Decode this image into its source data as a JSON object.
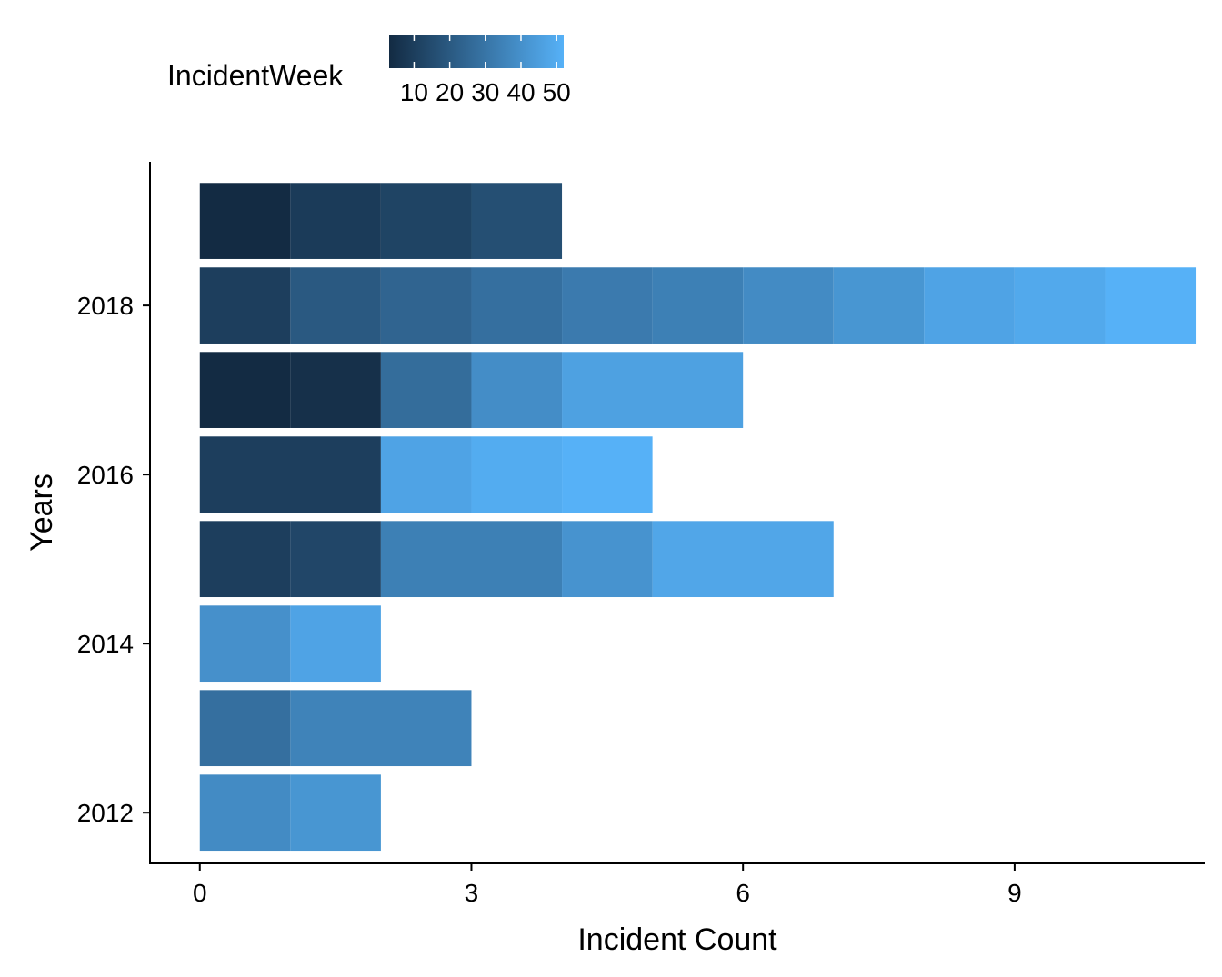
{
  "chart_data": {
    "type": "bar",
    "orientation": "horizontal",
    "stacked": true,
    "xlabel": "Incident Count",
    "ylabel": "Years",
    "xlim": [
      -0.55,
      11.1
    ],
    "ylim": [
      2011.4,
      2019.7
    ],
    "x_ticks": [
      0,
      3,
      6,
      9
    ],
    "y_ticks": [
      2012,
      2014,
      2016,
      2018
    ],
    "legend": {
      "title": "IncidentWeek",
      "position": "top",
      "type": "colorbar",
      "range": [
        3,
        52
      ],
      "ticks": [
        10,
        20,
        30,
        40,
        50
      ],
      "tick_labels": [
        "10",
        "20",
        "30",
        "40",
        "50"
      ],
      "low_color": "#132B43",
      "high_color": "#56B1F7"
    },
    "bars": [
      {
        "year": 2012,
        "segments": [
          {
            "week": 38,
            "count": 1
          },
          {
            "week": 42,
            "count": 1
          }
        ]
      },
      {
        "year": 2013,
        "segments": [
          {
            "week": 28,
            "count": 1
          },
          {
            "week": 35,
            "count": 2
          }
        ]
      },
      {
        "year": 2014,
        "segments": [
          {
            "week": 40,
            "count": 1
          },
          {
            "week": 47,
            "count": 1
          }
        ]
      },
      {
        "year": 2015,
        "segments": [
          {
            "week": 10,
            "count": 1
          },
          {
            "week": 13,
            "count": 1
          },
          {
            "week": 34,
            "count": 2
          },
          {
            "week": 41,
            "count": 1
          },
          {
            "week": 48,
            "count": 2
          }
        ]
      },
      {
        "year": 2016,
        "segments": [
          {
            "week": 10,
            "count": 2
          },
          {
            "week": 47,
            "count": 1
          },
          {
            "week": 50,
            "count": 1
          },
          {
            "week": 52,
            "count": 1
          }
        ]
      },
      {
        "year": 2017,
        "segments": [
          {
            "week": 3,
            "count": 1
          },
          {
            "week": 5,
            "count": 1
          },
          {
            "week": 27,
            "count": 1
          },
          {
            "week": 39,
            "count": 1
          },
          {
            "week": 46,
            "count": 2
          }
        ]
      },
      {
        "year": 2018,
        "segments": [
          {
            "week": 10,
            "count": 1
          },
          {
            "week": 20,
            "count": 1
          },
          {
            "week": 24,
            "count": 1
          },
          {
            "week": 28,
            "count": 1
          },
          {
            "week": 32,
            "count": 1
          },
          {
            "week": 34,
            "count": 1
          },
          {
            "week": 38,
            "count": 1
          },
          {
            "week": 42,
            "count": 1
          },
          {
            "week": 47,
            "count": 1
          },
          {
            "week": 49,
            "count": 1
          },
          {
            "week": 52,
            "count": 1
          }
        ]
      },
      {
        "year": 2019,
        "segments": [
          {
            "week": 3,
            "count": 1
          },
          {
            "week": 9,
            "count": 1
          },
          {
            "week": 12,
            "count": 1
          },
          {
            "week": 16,
            "count": 1
          }
        ]
      }
    ]
  }
}
